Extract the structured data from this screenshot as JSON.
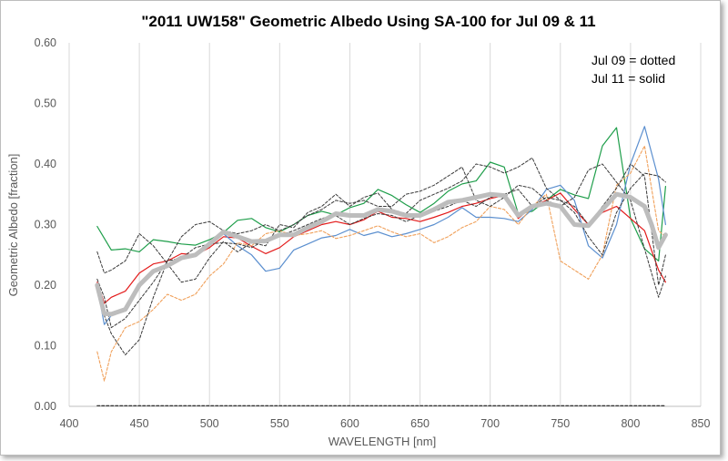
{
  "chart_data": {
    "type": "line",
    "title": "\"2011 UW158\" Geometric Albedo Using SA-100 for Jul 09 & 11",
    "xlabel": "WAVELENGTH [nm]",
    "ylabel": "Geometric Albedo [fraction]",
    "xlim": [
      400,
      850
    ],
    "ylim": [
      0,
      0.6
    ],
    "xticks": [
      400,
      450,
      500,
      550,
      600,
      650,
      700,
      750,
      800,
      850
    ],
    "yticks": [
      0.0,
      0.1,
      0.2,
      0.3,
      0.4,
      0.5,
      0.6
    ],
    "xtick_labels": [
      "400",
      "450",
      "500",
      "550",
      "600",
      "650",
      "700",
      "750",
      "800",
      "850"
    ],
    "ytick_labels": [
      "0.00",
      "0.10",
      "0.20",
      "0.30",
      "0.40",
      "0.50",
      "0.60"
    ],
    "grid": "vertical",
    "annotations": [
      "Jul 09 = dotted",
      "Jul 11 = solid"
    ],
    "series": [
      {
        "style": "solid",
        "color": "#1e9e4a",
        "width": 1.2,
        "x": [
          420,
          430,
          440,
          450,
          460,
          470,
          480,
          490,
          500,
          510,
          520,
          530,
          540,
          550,
          560,
          570,
          580,
          590,
          600,
          610,
          620,
          630,
          640,
          650,
          660,
          670,
          680,
          690,
          700,
          710,
          720,
          730,
          740,
          750,
          760,
          770,
          780,
          790,
          800,
          810,
          820,
          825
        ],
        "y": [
          0.297,
          0.258,
          0.26,
          0.255,
          0.275,
          0.272,
          0.268,
          0.266,
          0.275,
          0.287,
          0.307,
          0.31,
          0.295,
          0.288,
          0.3,
          0.315,
          0.322,
          0.316,
          0.328,
          0.335,
          0.358,
          0.348,
          0.333,
          0.32,
          0.335,
          0.355,
          0.367,
          0.372,
          0.403,
          0.395,
          0.318,
          0.322,
          0.34,
          0.358,
          0.349,
          0.343,
          0.43,
          0.46,
          0.31,
          0.26,
          0.24,
          0.363
        ]
      },
      {
        "style": "solid",
        "color": "#e31a1a",
        "width": 1.2,
        "x": [
          420,
          425,
          430,
          440,
          450,
          460,
          470,
          480,
          490,
          500,
          510,
          520,
          530,
          540,
          550,
          560,
          570,
          580,
          590,
          600,
          610,
          620,
          630,
          640,
          650,
          660,
          670,
          680,
          690,
          700,
          710,
          720,
          730,
          740,
          750,
          760,
          770,
          780,
          790,
          800,
          810,
          820,
          825
        ],
        "y": [
          0.205,
          0.17,
          0.18,
          0.19,
          0.22,
          0.235,
          0.24,
          0.252,
          0.25,
          0.262,
          0.28,
          0.278,
          0.264,
          0.252,
          0.262,
          0.28,
          0.29,
          0.3,
          0.305,
          0.3,
          0.308,
          0.322,
          0.312,
          0.31,
          0.305,
          0.312,
          0.32,
          0.33,
          0.335,
          0.343,
          0.348,
          0.31,
          0.33,
          0.34,
          0.352,
          0.325,
          0.3,
          0.32,
          0.33,
          0.31,
          0.29,
          0.225,
          0.205
        ]
      },
      {
        "style": "solid",
        "color": "#5b8fcf",
        "width": 1.2,
        "x": [
          420,
          425,
          430,
          440,
          450,
          460,
          470,
          480,
          490,
          500,
          510,
          520,
          530,
          540,
          550,
          560,
          570,
          580,
          590,
          600,
          610,
          620,
          630,
          640,
          650,
          660,
          670,
          680,
          690,
          700,
          710,
          720,
          730,
          740,
          750,
          760,
          770,
          780,
          790,
          800,
          810,
          820,
          825
        ],
        "y": [
          0.198,
          0.135,
          0.15,
          0.16,
          0.2,
          0.225,
          0.23,
          0.245,
          0.25,
          0.272,
          0.285,
          0.265,
          0.25,
          0.223,
          0.228,
          0.258,
          0.268,
          0.278,
          0.282,
          0.292,
          0.282,
          0.288,
          0.28,
          0.285,
          0.292,
          0.3,
          0.312,
          0.328,
          0.312,
          0.312,
          0.31,
          0.305,
          0.325,
          0.358,
          0.365,
          0.34,
          0.265,
          0.245,
          0.3,
          0.4,
          0.462,
          0.375,
          0.3
        ]
      },
      {
        "style": "dotted",
        "color": "#f0a05a",
        "width": 1.1,
        "x": [
          420,
          425,
          430,
          440,
          450,
          460,
          470,
          480,
          490,
          500,
          510,
          520,
          530,
          540,
          550,
          560,
          570,
          580,
          590,
          600,
          610,
          620,
          630,
          640,
          650,
          660,
          670,
          680,
          690,
          700,
          710,
          720,
          730,
          740,
          750,
          760,
          770,
          780,
          790,
          800,
          810,
          820,
          825
        ],
        "y": [
          0.09,
          0.042,
          0.09,
          0.13,
          0.14,
          0.16,
          0.185,
          0.175,
          0.185,
          0.215,
          0.235,
          0.27,
          0.265,
          0.285,
          0.29,
          0.282,
          0.285,
          0.29,
          0.277,
          0.282,
          0.29,
          0.298,
          0.288,
          0.28,
          0.285,
          0.27,
          0.28,
          0.295,
          0.305,
          0.33,
          0.325,
          0.3,
          0.33,
          0.35,
          0.24,
          0.225,
          0.21,
          0.25,
          0.365,
          0.385,
          0.43,
          0.29,
          0.28
        ]
      },
      {
        "style": "dotted",
        "color": "#3a3a3a",
        "width": 1.0,
        "x": [
          420,
          425,
          430,
          440,
          450,
          460,
          470,
          480,
          490,
          500,
          510,
          520,
          530,
          540,
          550,
          560,
          570,
          580,
          590,
          600,
          610,
          620,
          630,
          640,
          650,
          660,
          670,
          680,
          690,
          700,
          710,
          720,
          730,
          740,
          750,
          760,
          770,
          780,
          790,
          800,
          810,
          820,
          825
        ],
        "y": [
          0.255,
          0.22,
          0.225,
          0.24,
          0.285,
          0.265,
          0.235,
          0.205,
          0.21,
          0.245,
          0.272,
          0.255,
          0.27,
          0.265,
          0.3,
          0.295,
          0.32,
          0.33,
          0.35,
          0.33,
          0.345,
          0.352,
          0.325,
          0.318,
          0.34,
          0.35,
          0.36,
          0.372,
          0.4,
          0.395,
          0.385,
          0.395,
          0.41,
          0.36,
          0.34,
          0.32,
          0.28,
          0.25,
          0.32,
          0.36,
          0.385,
          0.38,
          0.37
        ]
      },
      {
        "style": "dotted",
        "color": "#3a3a3a",
        "width": 1.0,
        "x": [
          420,
          425,
          430,
          440,
          450,
          460,
          470,
          480,
          490,
          500,
          510,
          520,
          530,
          540,
          550,
          560,
          570,
          580,
          590,
          600,
          610,
          620,
          630,
          640,
          650,
          660,
          670,
          680,
          690,
          700,
          710,
          720,
          730,
          740,
          750,
          760,
          770,
          780,
          790,
          800,
          810,
          820,
          825
        ],
        "y": [
          0.195,
          0.15,
          0.12,
          0.085,
          0.11,
          0.18,
          0.24,
          0.28,
          0.3,
          0.305,
          0.29,
          0.285,
          0.29,
          0.3,
          0.29,
          0.3,
          0.315,
          0.325,
          0.34,
          0.335,
          0.34,
          0.33,
          0.33,
          0.35,
          0.355,
          0.365,
          0.38,
          0.395,
          0.34,
          0.33,
          0.345,
          0.365,
          0.36,
          0.34,
          0.33,
          0.345,
          0.39,
          0.4,
          0.37,
          0.34,
          0.26,
          0.18,
          0.215
        ]
      },
      {
        "style": "dotted",
        "color": "#3a3a3a",
        "width": 1.0,
        "x": [
          420,
          425,
          430,
          440,
          450,
          460,
          470,
          480,
          490,
          500,
          510,
          520,
          530,
          540,
          550,
          560,
          570,
          580,
          590,
          600,
          610,
          620,
          630,
          640,
          650,
          660,
          670,
          680,
          690,
          700,
          710,
          720,
          730,
          740,
          750,
          760,
          770,
          780,
          790,
          800,
          810,
          820,
          825
        ],
        "y": [
          0.21,
          0.18,
          0.13,
          0.145,
          0.175,
          0.205,
          0.24,
          0.245,
          0.262,
          0.268,
          0.27,
          0.268,
          0.262,
          0.275,
          0.282,
          0.29,
          0.3,
          0.31,
          0.315,
          0.3,
          0.31,
          0.318,
          0.315,
          0.305,
          0.315,
          0.322,
          0.33,
          0.34,
          0.33,
          0.345,
          0.35,
          0.358,
          0.33,
          0.345,
          0.34,
          0.33,
          0.3,
          0.33,
          0.36,
          0.4,
          0.38,
          0.2,
          0.25
        ]
      },
      {
        "style": "dotted",
        "color": "#222222",
        "width": 1.2,
        "x": [
          420,
          825
        ],
        "y": [
          0.001,
          0.001
        ]
      },
      {
        "style": "solid",
        "color": "#bdbdbd",
        "width": 5,
        "x": [
          420,
          425,
          430,
          440,
          450,
          460,
          470,
          480,
          490,
          500,
          510,
          520,
          530,
          540,
          550,
          560,
          570,
          580,
          590,
          600,
          610,
          620,
          630,
          640,
          650,
          660,
          670,
          680,
          690,
          700,
          710,
          720,
          730,
          740,
          750,
          760,
          770,
          780,
          790,
          800,
          810,
          815,
          820,
          825
        ],
        "y": [
          0.2,
          0.153,
          0.152,
          0.16,
          0.2,
          0.223,
          0.232,
          0.245,
          0.25,
          0.268,
          0.288,
          0.28,
          0.272,
          0.273,
          0.283,
          0.283,
          0.295,
          0.305,
          0.318,
          0.315,
          0.315,
          0.325,
          0.322,
          0.315,
          0.315,
          0.325,
          0.337,
          0.34,
          0.345,
          0.35,
          0.348,
          0.315,
          0.33,
          0.335,
          0.33,
          0.3,
          0.298,
          0.325,
          0.35,
          0.345,
          0.33,
          0.3,
          0.262,
          0.283
        ]
      }
    ]
  }
}
